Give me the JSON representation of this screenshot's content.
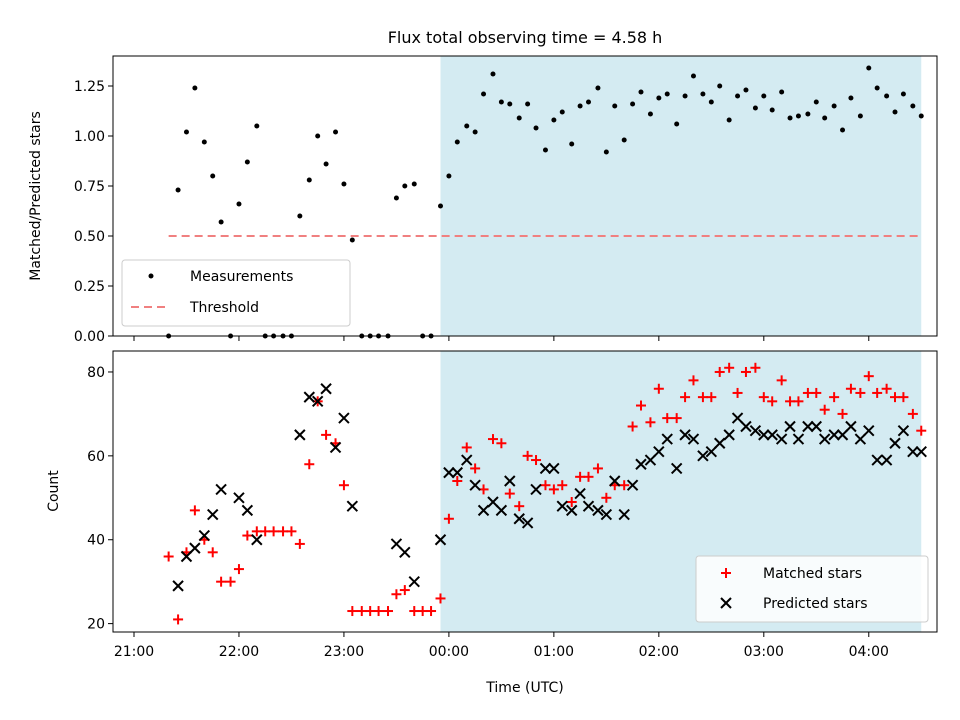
{
  "chart_data": [
    {
      "type": "scatter",
      "title": "Flux total observing time = 4.58 h",
      "xlabel": "",
      "ylabel": "Matched/Predicted stars",
      "xlim": [
        -0.2,
        7.65
      ],
      "ylim": [
        0,
        1.4
      ],
      "yticks": [
        0.0,
        0.25,
        0.5,
        0.75,
        1.0,
        1.25
      ],
      "ytick_labels": [
        "0.00",
        "0.25",
        "0.50",
        "0.75",
        "1.00",
        "1.25"
      ],
      "xticks": [
        0,
        1,
        2,
        3,
        4,
        5,
        6,
        7
      ],
      "shaded_span": [
        2.92,
        7.5
      ],
      "shaded_color": "#d4ebf2",
      "legend_position": "lower-left",
      "series": [
        {
          "name": "Measurements",
          "color": "#000000",
          "marker": "dot",
          "x": [
            0.33,
            0.42,
            0.5,
            0.58,
            0.67,
            0.75,
            0.83,
            0.92,
            1.0,
            1.08,
            1.17,
            1.25,
            1.33,
            1.42,
            1.5,
            1.58,
            1.67,
            1.75,
            1.83,
            1.92,
            2.0,
            2.08,
            2.17,
            2.25,
            2.33,
            2.42,
            2.5,
            2.58,
            2.67,
            2.75,
            2.83,
            2.92,
            3.0,
            3.08,
            3.17,
            3.25,
            3.33,
            3.42,
            3.5,
            3.58,
            3.67,
            3.75,
            3.83,
            3.92,
            4.0,
            4.08,
            4.17,
            4.25,
            4.33,
            4.42,
            4.5,
            4.58,
            4.67,
            4.75,
            4.83,
            4.92,
            5.0,
            5.08,
            5.17,
            5.25,
            5.33,
            5.42,
            5.5,
            5.58,
            5.67,
            5.75,
            5.83,
            5.92,
            6.0,
            6.08,
            6.17,
            6.25,
            6.33,
            6.42,
            6.5,
            6.58,
            6.67,
            6.75,
            6.83,
            6.92,
            7.0,
            7.08,
            7.17,
            7.25,
            7.33,
            7.42,
            7.5
          ],
          "y": [
            0.0,
            0.73,
            1.02,
            1.24,
            0.97,
            0.8,
            0.57,
            0.0,
            0.66,
            0.87,
            1.05,
            0.0,
            0.0,
            0.0,
            0.0,
            0.6,
            0.78,
            1.0,
            0.86,
            1.02,
            0.76,
            0.48,
            0.0,
            0.0,
            0.0,
            0.0,
            0.69,
            0.75,
            0.76,
            0.0,
            0.0,
            0.65,
            0.8,
            0.97,
            1.05,
            1.02,
            1.21,
            1.31,
            1.17,
            1.16,
            1.09,
            1.16,
            1.04,
            0.93,
            1.08,
            1.12,
            0.96,
            1.15,
            1.17,
            1.24,
            0.92,
            1.15,
            0.98,
            1.16,
            1.22,
            1.11,
            1.19,
            1.21,
            1.06,
            1.2,
            1.3,
            1.21,
            1.17,
            1.25,
            1.08,
            1.2,
            1.23,
            1.14,
            1.2,
            1.13,
            1.22,
            1.09,
            1.1,
            1.11,
            1.17,
            1.09,
            1.15,
            1.03,
            1.19,
            1.1,
            1.34,
            1.24,
            1.2,
            1.12,
            1.21,
            1.15,
            1.1
          ]
        },
        {
          "name": "Threshold",
          "color": "#f08080",
          "style": "dashed",
          "x": [
            0.33,
            7.5
          ],
          "y": [
            0.5,
            0.5
          ]
        }
      ]
    },
    {
      "type": "scatter",
      "title": "",
      "xlabel": "Time (UTC)",
      "ylabel": "Count",
      "xlim": [
        -0.2,
        7.65
      ],
      "ylim": [
        18,
        85
      ],
      "yticks": [
        20,
        40,
        60,
        80
      ],
      "ytick_labels": [
        "20",
        "40",
        "60",
        "80"
      ],
      "xticks": [
        0,
        1,
        2,
        3,
        4,
        5,
        6,
        7
      ],
      "xtick_labels": [
        "21:00",
        "22:00",
        "23:00",
        "00:00",
        "01:00",
        "02:00",
        "03:00",
        "04:00"
      ],
      "shaded_span": [
        2.92,
        7.5
      ],
      "shaded_color": "#d4ebf2",
      "legend_position": "lower-right",
      "series": [
        {
          "name": "Matched stars",
          "color": "#ff0000",
          "marker": "plus",
          "x": [
            0.33,
            0.42,
            0.5,
            0.58,
            0.67,
            0.75,
            0.83,
            0.92,
            1.0,
            1.08,
            1.17,
            1.25,
            1.33,
            1.42,
            1.5,
            1.58,
            1.67,
            1.75,
            1.83,
            1.92,
            2.0,
            2.08,
            2.17,
            2.25,
            2.33,
            2.42,
            2.5,
            2.58,
            2.67,
            2.75,
            2.83,
            2.92,
            3.0,
            3.08,
            3.17,
            3.25,
            3.33,
            3.42,
            3.5,
            3.58,
            3.67,
            3.75,
            3.83,
            3.92,
            4.0,
            4.08,
            4.17,
            4.25,
            4.33,
            4.42,
            4.5,
            4.58,
            4.67,
            4.75,
            4.83,
            4.92,
            5.0,
            5.08,
            5.17,
            5.25,
            5.33,
            5.42,
            5.5,
            5.58,
            5.67,
            5.75,
            5.83,
            5.92,
            6.0,
            6.08,
            6.17,
            6.25,
            6.33,
            6.42,
            6.5,
            6.58,
            6.67,
            6.75,
            6.83,
            6.92,
            7.0,
            7.08,
            7.17,
            7.25,
            7.33,
            7.42,
            7.5
          ],
          "y": [
            36,
            21,
            37,
            47,
            40,
            37,
            30,
            30,
            33,
            41,
            42,
            42,
            42,
            42,
            42,
            39,
            58,
            73,
            65,
            63,
            53,
            23,
            23,
            23,
            23,
            23,
            27,
            28,
            23,
            23,
            23,
            26,
            45,
            54,
            62,
            57,
            52,
            64,
            63,
            51,
            48,
            60,
            59,
            53,
            52,
            53,
            49,
            55,
            55,
            57,
            50,
            53,
            53,
            67,
            72,
            68,
            76,
            69,
            69,
            74,
            78,
            74,
            74,
            80,
            81,
            75,
            80,
            81,
            74,
            73,
            78,
            73,
            73,
            75,
            75,
            71,
            74,
            70,
            76,
            75,
            79,
            75,
            76,
            74,
            74,
            70,
            66
          ]
        },
        {
          "name": "Predicted stars",
          "color": "#000000",
          "marker": "x",
          "x": [
            0.42,
            0.5,
            0.58,
            0.67,
            0.75,
            0.83,
            1.0,
            1.08,
            1.17,
            1.58,
            1.67,
            1.75,
            1.83,
            1.92,
            2.0,
            2.08,
            2.5,
            2.58,
            2.67,
            2.92,
            3.0,
            3.08,
            3.17,
            3.25,
            3.33,
            3.42,
            3.5,
            3.58,
            3.67,
            3.75,
            3.83,
            3.92,
            4.0,
            4.08,
            4.17,
            4.25,
            4.33,
            4.42,
            4.5,
            4.58,
            4.67,
            4.75,
            4.83,
            4.92,
            5.0,
            5.08,
            5.17,
            5.25,
            5.33,
            5.42,
            5.5,
            5.58,
            5.67,
            5.75,
            5.83,
            5.92,
            6.0,
            6.08,
            6.17,
            6.25,
            6.33,
            6.42,
            6.5,
            6.58,
            6.67,
            6.75,
            6.83,
            6.92,
            7.0,
            7.08,
            7.17,
            7.25,
            7.33,
            7.42,
            7.5
          ],
          "y": [
            29,
            36,
            38,
            41,
            46,
            52,
            50,
            47,
            40,
            65,
            74,
            73,
            76,
            62,
            69,
            48,
            39,
            37,
            30,
            40,
            56,
            56,
            59,
            53,
            47,
            49,
            47,
            54,
            45,
            44,
            52,
            57,
            57,
            48,
            47,
            51,
            48,
            47,
            46,
            54,
            46,
            53,
            58,
            59,
            61,
            64,
            57,
            65,
            64,
            60,
            61,
            63,
            65,
            69,
            67,
            66,
            65,
            65,
            64,
            67,
            64,
            67,
            67,
            64,
            65,
            65,
            67,
            64,
            66,
            59,
            59,
            63,
            66,
            61,
            61
          ]
        }
      ]
    }
  ]
}
